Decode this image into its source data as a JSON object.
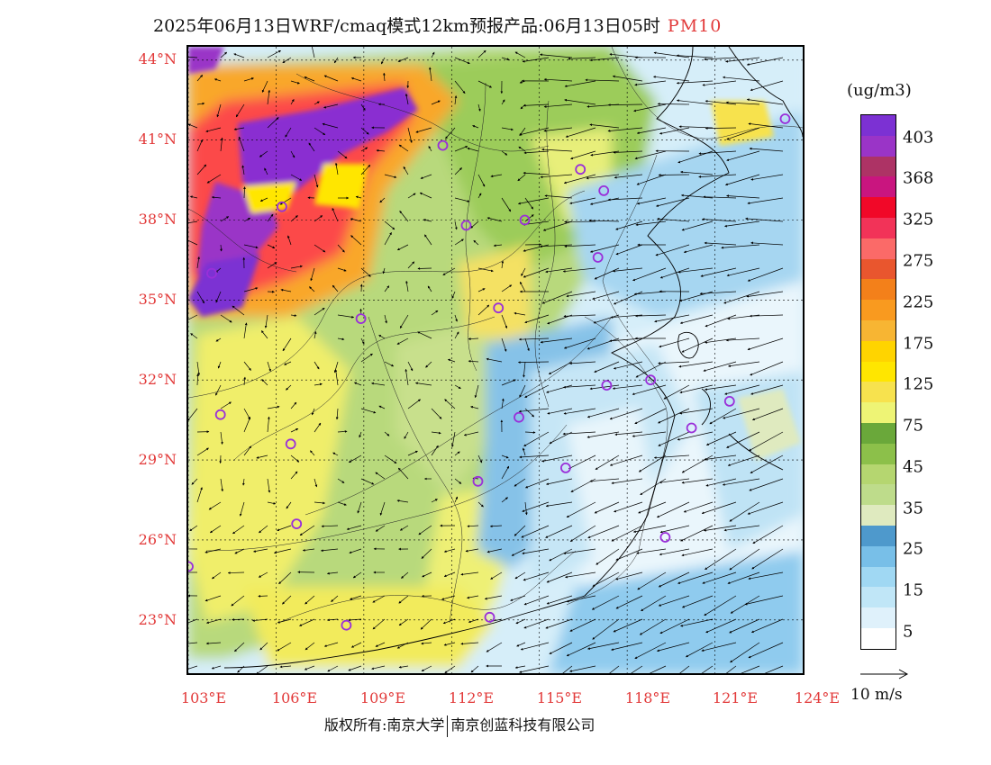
{
  "header": {
    "title": "2025年06月13日WRF/cmaq模式12km预报产品:06月13日05时",
    "variable": "PM10"
  },
  "map": {
    "lat_ticks": [
      "44°N",
      "41°N",
      "38°N",
      "35°N",
      "32°N",
      "29°N",
      "26°N",
      "23°N"
    ],
    "lon_ticks": [
      "103°E",
      "106°E",
      "109°E",
      "112°E",
      "115°E",
      "118°E",
      "121°E",
      "124°E"
    ],
    "extent": {
      "lon_min": 103,
      "lon_max": 124,
      "lat_min": 21,
      "lat_max": 44.5
    }
  },
  "legend": {
    "unit": "(ug/m3)",
    "colors": [
      "#ffffff",
      "#dff1fb",
      "#c0e6f7",
      "#a0d8f3",
      "#78bfe8",
      "#4e99cc",
      "#dfeabf",
      "#bedc8b",
      "#b5d670",
      "#8cc04a",
      "#6aa83a",
      "#eef475",
      "#f7e24e",
      "#ffe600",
      "#ffd400",
      "#f7b533",
      "#f99a1f",
      "#f3801a",
      "#e9562e",
      "#fb6a68",
      "#f23358",
      "#f10828",
      "#c9157f",
      "#ad3365",
      "#9a34c7",
      "#7c31d3"
    ],
    "labels": [
      "5",
      "15",
      "25",
      "35",
      "45",
      "75",
      "125",
      "175",
      "225",
      "275",
      "325",
      "368",
      "403"
    ]
  },
  "wind_reference": {
    "label": "10 m/s"
  },
  "footer": {
    "left": "版权所有:南京大学",
    "right": "南京创蓝科技有限公司"
  }
}
